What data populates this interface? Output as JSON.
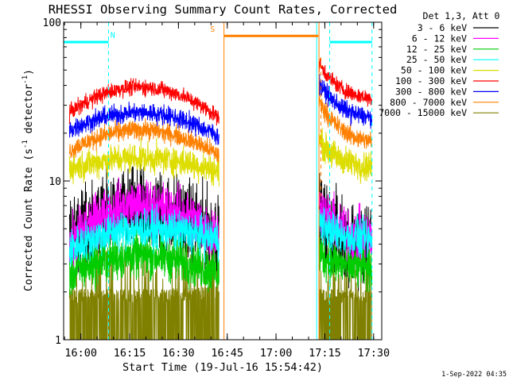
{
  "chart_data": {
    "type": "line",
    "title": "RHESSI Observing Summary Count Rates, Corrected",
    "xlabel": "Start Time (19-Jul-16 15:54:42)",
    "ylabel": "Corrected Count Rate (s",
    "ylabel_sup1": "-1",
    "ylabel_mid": " detector",
    "ylabel_sup2": "-1",
    "ylabel_end": ")",
    "yscale": "log",
    "ylim": [
      1,
      100
    ],
    "xlim_minutes_after_1600": [
      -5.3,
      92.5
    ],
    "x_ticks": [
      {
        "label": "16:00",
        "minutes": 0
      },
      {
        "label": "16:15",
        "minutes": 15
      },
      {
        "label": "16:30",
        "minutes": 30
      },
      {
        "label": "16:45",
        "minutes": 45
      },
      {
        "label": "17:00",
        "minutes": 60
      },
      {
        "label": "17:15",
        "minutes": 75
      },
      {
        "label": "17:30",
        "minutes": 90
      }
    ],
    "y_ticks": [
      {
        "label": "1",
        "value": 1
      },
      {
        "label": "10",
        "value": 10
      },
      {
        "label": "100",
        "value": 100
      }
    ],
    "legend_header": "Det 1,3, Att 0",
    "legend_placement": "right",
    "series": [
      {
        "name": "3 - 6 keV",
        "color": "#000000"
      },
      {
        "name": "6 - 12 keV",
        "color": "#ff00ff"
      },
      {
        "name": "12 - 25 keV",
        "color": "#00cc00"
      },
      {
        "name": "25 - 50 keV",
        "color": "#00ffff"
      },
      {
        "name": "50 - 100 keV",
        "color": "#dddd00"
      },
      {
        "name": "100 - 300 keV",
        "color": "#ff0000"
      },
      {
        "name": "300 - 800 keV",
        "color": "#0000ff"
      },
      {
        "name": "800 - 7000 keV",
        "color": "#ff8000"
      },
      {
        "name": "7000 - 15000 keV",
        "color": "#808000"
      }
    ],
    "data_profiles": [
      {
        "color": "#808000",
        "seg1_start": 1.9,
        "seg1_end": 2.0,
        "seg2_start": 1.9,
        "seg2_end": 1.9,
        "noise": 0.3,
        "clip_min": 1.0,
        "spiky": true
      },
      {
        "color": "#000000",
        "seg1_start": 4.5,
        "seg1_peak": 6.5,
        "seg1_end": 4.5,
        "seg2_start": 6.0,
        "seg2_end": 4.0,
        "noise": 0.25
      },
      {
        "color": "#00cc00",
        "seg1_start": 2.6,
        "seg1_peak": 3.4,
        "seg1_end": 2.6,
        "seg2_start": 3.5,
        "seg2_end": 2.8,
        "noise": 0.14
      },
      {
        "color": "#ff00ff",
        "seg1_start": 4.0,
        "seg1_peak": 7.0,
        "seg1_end": 4.5,
        "seg2_start": 7.0,
        "seg2_end": 4.2,
        "noise": 0.16
      },
      {
        "color": "#00ffff",
        "seg1_start": 3.7,
        "seg1_peak": 5.0,
        "seg1_end": 4.3,
        "seg2_start": 5.5,
        "seg2_end": 4.2,
        "noise": 0.12
      },
      {
        "color": "#dddd00",
        "seg1_start": 12.0,
        "seg1_peak": 14.0,
        "seg1_end": 11.5,
        "seg2_start": 18.0,
        "seg2_end": 12.0,
        "noise": 0.09
      },
      {
        "color": "#ff8000",
        "seg1_start": 15.5,
        "seg1_peak": 21.0,
        "seg1_end": 14.5,
        "seg2_start": 32.0,
        "seg2_end": 17.0,
        "noise": 0.06
      },
      {
        "color": "#0000ff",
        "seg1_start": 21.0,
        "seg1_peak": 27.0,
        "seg1_end": 19.0,
        "seg2_start": 42.0,
        "seg2_end": 24.0,
        "noise": 0.06
      },
      {
        "color": "#ff0000",
        "seg1_start": 27.0,
        "seg1_peak": 39.0,
        "seg1_end": 25.0,
        "seg2_start": 55.0,
        "seg2_end": 32.0,
        "noise": 0.05
      }
    ],
    "data_segments_minutes": [
      [
        -3.5,
        42.5
      ],
      [
        73.2,
        89.5
      ]
    ],
    "data_segment_peak_minute": 18,
    "flag_bars": [
      {
        "color": "#00ffff",
        "start": -5.3,
        "end": 8.5,
        "value": 75
      },
      {
        "color": "#00ffff",
        "start": 76.5,
        "end": 89.5,
        "value": 75
      },
      {
        "color": "#ff8000",
        "start": 44.0,
        "end": 73.0,
        "value": 82
      }
    ],
    "vertical_markers": [
      {
        "color": "#00ffff",
        "minute": 8.5,
        "dashed": true
      },
      {
        "color": "#ff8000",
        "minute": 44.0,
        "dashed": false
      },
      {
        "color": "#00ffff",
        "minute": 72.5,
        "dashed": false
      },
      {
        "color": "#ff8000",
        "minute": 73.2,
        "dashed": false
      },
      {
        "color": "#00ffff",
        "minute": 76.5,
        "dashed": true
      },
      {
        "color": "#00ffff",
        "minute": 89.5,
        "dashed": true
      },
      {
        "color": "#ff8000",
        "minute": 73.8,
        "dashed": true,
        "partial": true
      }
    ],
    "flag_labels": [
      {
        "text": "N",
        "color": "#00ffff",
        "minute": 9.8,
        "value": 80
      },
      {
        "text": "S",
        "color": "#ff8000",
        "minute": 40.5,
        "value": 87
      }
    ]
  },
  "footer": {
    "timestamp": "1-Sep-2022 04:35"
  }
}
